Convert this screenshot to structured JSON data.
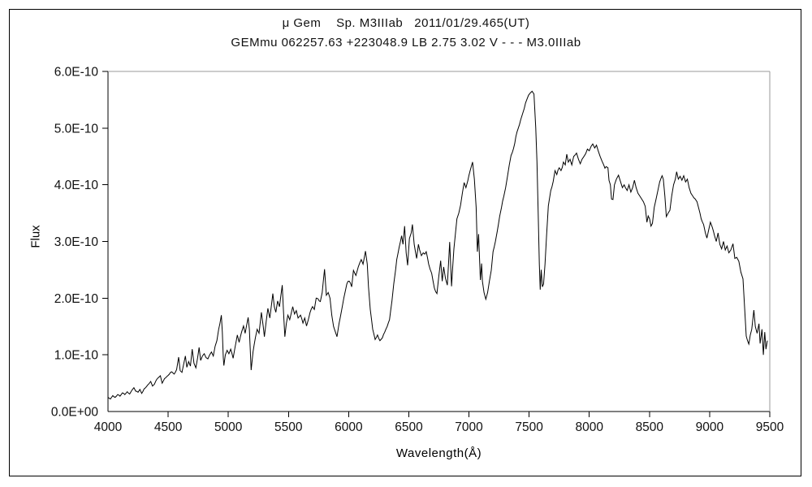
{
  "header": {
    "title_line1": "μ Gem    Sp. M3IIIab   2011/01/29.465(UT)",
    "title_line2": "GEMmu 062257.63 +223048.9 LB 2.75 3.02 V - - - M3.0IIIab"
  },
  "chart_data": {
    "type": "line",
    "title": "μ Gem    Sp. M3IIIab   2011/01/29.465(UT)",
    "subtitle": "GEMmu 062257.63 +223048.9 LB 2.75 3.02 V - - - M3.0IIIab",
    "xlabel": "Wavelength(Å)",
    "ylabel": "Flux",
    "xlim": [
      4000,
      9500
    ],
    "ylim_e10": [
      0,
      6
    ],
    "x_ticks": [
      4000,
      4500,
      5000,
      5500,
      6000,
      6500,
      7000,
      7500,
      8000,
      8500,
      9000,
      9500
    ],
    "y_ticks_e10": [
      0,
      1,
      2,
      3,
      4,
      5,
      6
    ],
    "y_tick_labels": [
      "0.0E+00",
      "1.0E-10",
      "2.0E-10",
      "3.0E-10",
      "4.0E-10",
      "5.0E-10",
      "6.0E-10"
    ],
    "grid": false,
    "legend_position": "none",
    "line_color": "#000000",
    "flux_unit_note": "flux values below are in units of 1E-10 as labeled on the y-axis",
    "points": [
      [
        4000,
        0.25
      ],
      [
        4020,
        0.22
      ],
      [
        4040,
        0.28
      ],
      [
        4060,
        0.25
      ],
      [
        4080,
        0.3
      ],
      [
        4100,
        0.27
      ],
      [
        4120,
        0.33
      ],
      [
        4140,
        0.3
      ],
      [
        4160,
        0.35
      ],
      [
        4180,
        0.31
      ],
      [
        4200,
        0.38
      ],
      [
        4215,
        0.42
      ],
      [
        4230,
        0.36
      ],
      [
        4250,
        0.34
      ],
      [
        4265,
        0.39
      ],
      [
        4280,
        0.32
      ],
      [
        4300,
        0.4
      ],
      [
        4320,
        0.44
      ],
      [
        4340,
        0.49
      ],
      [
        4355,
        0.53
      ],
      [
        4370,
        0.45
      ],
      [
        4385,
        0.48
      ],
      [
        4400,
        0.55
      ],
      [
        4420,
        0.6
      ],
      [
        4435,
        0.63
      ],
      [
        4450,
        0.5
      ],
      [
        4470,
        0.58
      ],
      [
        4490,
        0.62
      ],
      [
        4510,
        0.66
      ],
      [
        4530,
        0.7
      ],
      [
        4550,
        0.66
      ],
      [
        4570,
        0.74
      ],
      [
        4587,
        0.96
      ],
      [
        4600,
        0.72
      ],
      [
        4615,
        0.69
      ],
      [
        4630,
        0.85
      ],
      [
        4643,
        0.98
      ],
      [
        4655,
        0.78
      ],
      [
        4670,
        0.88
      ],
      [
        4685,
        0.8
      ],
      [
        4700,
        1.1
      ],
      [
        4715,
        0.85
      ],
      [
        4730,
        0.77
      ],
      [
        4745,
        0.95
      ],
      [
        4757,
        1.13
      ],
      [
        4770,
        0.9
      ],
      [
        4785,
        0.98
      ],
      [
        4800,
        1.02
      ],
      [
        4815,
        0.95
      ],
      [
        4830,
        0.93
      ],
      [
        4845,
        1.0
      ],
      [
        4860,
        1.05
      ],
      [
        4875,
        0.98
      ],
      [
        4890,
        1.15
      ],
      [
        4905,
        1.25
      ],
      [
        4920,
        1.45
      ],
      [
        4930,
        1.55
      ],
      [
        4942,
        1.7
      ],
      [
        4950,
        1.4
      ],
      [
        4958,
        0.95
      ],
      [
        4963,
        0.81
      ],
      [
        4975,
        1.0
      ],
      [
        4990,
        1.08
      ],
      [
        5005,
        1.02
      ],
      [
        5020,
        1.1
      ],
      [
        5040,
        0.94
      ],
      [
        5055,
        1.12
      ],
      [
        5075,
        1.35
      ],
      [
        5090,
        1.22
      ],
      [
        5110,
        1.4
      ],
      [
        5126,
        1.51
      ],
      [
        5140,
        1.38
      ],
      [
        5155,
        1.55
      ],
      [
        5165,
        1.66
      ],
      [
        5175,
        1.45
      ],
      [
        5190,
        0.73
      ],
      [
        5205,
        1.05
      ],
      [
        5225,
        1.3
      ],
      [
        5240,
        1.45
      ],
      [
        5255,
        1.38
      ],
      [
        5275,
        1.75
      ],
      [
        5290,
        1.5
      ],
      [
        5300,
        1.32
      ],
      [
        5315,
        1.6
      ],
      [
        5329,
        1.82
      ],
      [
        5345,
        1.65
      ],
      [
        5360,
        1.9
      ],
      [
        5370,
        2.08
      ],
      [
        5382,
        1.85
      ],
      [
        5395,
        1.75
      ],
      [
        5410,
        1.95
      ],
      [
        5425,
        1.85
      ],
      [
        5448,
        2.23
      ],
      [
        5458,
        1.8
      ],
      [
        5470,
        1.32
      ],
      [
        5482,
        1.55
      ],
      [
        5495,
        1.7
      ],
      [
        5510,
        1.62
      ],
      [
        5535,
        1.85
      ],
      [
        5550,
        1.72
      ],
      [
        5565,
        1.78
      ],
      [
        5580,
        1.65
      ],
      [
        5600,
        1.7
      ],
      [
        5620,
        1.56
      ],
      [
        5635,
        1.65
      ],
      [
        5650,
        1.51
      ],
      [
        5665,
        1.62
      ],
      [
        5680,
        1.75
      ],
      [
        5700,
        1.85
      ],
      [
        5715,
        1.8
      ],
      [
        5730,
        2.0
      ],
      [
        5745,
        1.99
      ],
      [
        5765,
        1.94
      ],
      [
        5780,
        2.1
      ],
      [
        5800,
        2.51
      ],
      [
        5815,
        2.05
      ],
      [
        5830,
        2.1
      ],
      [
        5845,
        2.0
      ],
      [
        5860,
        1.7
      ],
      [
        5875,
        1.5
      ],
      [
        5890,
        1.4
      ],
      [
        5903,
        1.32
      ],
      [
        5920,
        1.55
      ],
      [
        5940,
        1.77
      ],
      [
        5960,
        2.0
      ],
      [
        5985,
        2.25
      ],
      [
        6005,
        2.3
      ],
      [
        6025,
        2.2
      ],
      [
        6040,
        2.49
      ],
      [
        6060,
        2.4
      ],
      [
        6080,
        2.55
      ],
      [
        6105,
        2.68
      ],
      [
        6120,
        2.6
      ],
      [
        6140,
        2.83
      ],
      [
        6155,
        2.6
      ],
      [
        6165,
        2.2
      ],
      [
        6180,
        1.8
      ],
      [
        6200,
        1.45
      ],
      [
        6220,
        1.27
      ],
      [
        6240,
        1.35
      ],
      [
        6260,
        1.25
      ],
      [
        6280,
        1.3
      ],
      [
        6300,
        1.4
      ],
      [
        6320,
        1.5
      ],
      [
        6340,
        1.62
      ],
      [
        6360,
        1.95
      ],
      [
        6375,
        2.25
      ],
      [
        6390,
        2.5
      ],
      [
        6400,
        2.68
      ],
      [
        6420,
        2.9
      ],
      [
        6440,
        3.1
      ],
      [
        6452,
        2.95
      ],
      [
        6465,
        3.27
      ],
      [
        6478,
        2.8
      ],
      [
        6490,
        2.58
      ],
      [
        6505,
        3.05
      ],
      [
        6520,
        3.15
      ],
      [
        6530,
        3.3
      ],
      [
        6545,
        2.95
      ],
      [
        6565,
        2.7
      ],
      [
        6580,
        2.95
      ],
      [
        6590,
        2.85
      ],
      [
        6605,
        2.75
      ],
      [
        6620,
        2.8
      ],
      [
        6645,
        2.82
      ],
      [
        6665,
        2.6
      ],
      [
        6690,
        2.44
      ],
      [
        6712,
        2.18
      ],
      [
        6734,
        2.08
      ],
      [
        6750,
        2.4
      ],
      [
        6765,
        2.66
      ],
      [
        6778,
        2.3
      ],
      [
        6790,
        2.55
      ],
      [
        6805,
        2.35
      ],
      [
        6820,
        2.23
      ],
      [
        6840,
        2.99
      ],
      [
        6855,
        2.21
      ],
      [
        6875,
        2.87
      ],
      [
        6900,
        3.4
      ],
      [
        6915,
        3.5
      ],
      [
        6930,
        3.64
      ],
      [
        6945,
        3.85
      ],
      [
        6960,
        4.04
      ],
      [
        6975,
        3.95
      ],
      [
        6990,
        4.07
      ],
      [
        7010,
        4.25
      ],
      [
        7030,
        4.4
      ],
      [
        7045,
        4.1
      ],
      [
        7060,
        3.6
      ],
      [
        7070,
        2.82
      ],
      [
        7080,
        3.13
      ],
      [
        7095,
        2.32
      ],
      [
        7105,
        2.61
      ],
      [
        7112,
        2.3
      ],
      [
        7125,
        2.1
      ],
      [
        7140,
        1.98
      ],
      [
        7155,
        2.1
      ],
      [
        7170,
        2.3
      ],
      [
        7185,
        2.49
      ],
      [
        7200,
        2.82
      ],
      [
        7220,
        3.0
      ],
      [
        7235,
        3.18
      ],
      [
        7255,
        3.44
      ],
      [
        7270,
        3.6
      ],
      [
        7290,
        3.8
      ],
      [
        7305,
        3.95
      ],
      [
        7320,
        4.15
      ],
      [
        7335,
        4.35
      ],
      [
        7350,
        4.52
      ],
      [
        7370,
        4.64
      ],
      [
        7390,
        4.85
      ],
      [
        7410,
        5.0
      ],
      [
        7430,
        5.15
      ],
      [
        7445,
        5.25
      ],
      [
        7460,
        5.35
      ],
      [
        7480,
        5.5
      ],
      [
        7495,
        5.58
      ],
      [
        7510,
        5.62
      ],
      [
        7525,
        5.65
      ],
      [
        7540,
        5.6
      ],
      [
        7555,
        5.0
      ],
      [
        7565,
        4.4
      ],
      [
        7575,
        3.5
      ],
      [
        7585,
        2.6
      ],
      [
        7592,
        2.15
      ],
      [
        7600,
        2.5
      ],
      [
        7610,
        2.2
      ],
      [
        7620,
        2.25
      ],
      [
        7632,
        2.6
      ],
      [
        7645,
        3.1
      ],
      [
        7660,
        3.63
      ],
      [
        7680,
        3.9
      ],
      [
        7700,
        4.06
      ],
      [
        7715,
        4.25
      ],
      [
        7730,
        4.18
      ],
      [
        7750,
        4.3
      ],
      [
        7765,
        4.25
      ],
      [
        7785,
        4.4
      ],
      [
        7800,
        4.35
      ],
      [
        7813,
        4.54
      ],
      [
        7826,
        4.4
      ],
      [
        7840,
        4.45
      ],
      [
        7855,
        4.35
      ],
      [
        7870,
        4.5
      ],
      [
        7894,
        4.56
      ],
      [
        7910,
        4.45
      ],
      [
        7925,
        4.37
      ],
      [
        7940,
        4.45
      ],
      [
        7955,
        4.5
      ],
      [
        7970,
        4.55
      ],
      [
        7984,
        4.63
      ],
      [
        8000,
        4.6
      ],
      [
        8015,
        4.68
      ],
      [
        8029,
        4.72
      ],
      [
        8045,
        4.65
      ],
      [
        8060,
        4.7
      ],
      [
        8074,
        4.6
      ],
      [
        8090,
        4.5
      ],
      [
        8105,
        4.42
      ],
      [
        8120,
        4.35
      ],
      [
        8140,
        4.32
      ],
      [
        8155,
        4.3
      ],
      [
        8164,
        4.08
      ],
      [
        8175,
        4.0
      ],
      [
        8185,
        3.75
      ],
      [
        8197,
        3.74
      ],
      [
        8209,
        4.0
      ],
      [
        8225,
        4.1
      ],
      [
        8243,
        4.17
      ],
      [
        8260,
        4.05
      ],
      [
        8275,
        3.95
      ],
      [
        8290,
        4.0
      ],
      [
        8300,
        3.95
      ],
      [
        8315,
        3.9
      ],
      [
        8330,
        4.0
      ],
      [
        8345,
        3.87
      ],
      [
        8360,
        3.95
      ],
      [
        8375,
        4.08
      ],
      [
        8389,
        3.95
      ],
      [
        8405,
        3.85
      ],
      [
        8420,
        3.8
      ],
      [
        8435,
        3.75
      ],
      [
        8450,
        3.7
      ],
      [
        8465,
        3.62
      ],
      [
        8479,
        3.34
      ],
      [
        8490,
        3.45
      ],
      [
        8501,
        3.4
      ],
      [
        8513,
        3.27
      ],
      [
        8525,
        3.32
      ],
      [
        8540,
        3.6
      ],
      [
        8555,
        3.75
      ],
      [
        8570,
        3.9
      ],
      [
        8585,
        4.05
      ],
      [
        8605,
        4.16
      ],
      [
        8615,
        4.1
      ],
      [
        8628,
        3.8
      ],
      [
        8640,
        3.44
      ],
      [
        8655,
        3.5
      ],
      [
        8670,
        3.55
      ],
      [
        8685,
        3.8
      ],
      [
        8700,
        4.0
      ],
      [
        8715,
        4.1
      ],
      [
        8726,
        4.23
      ],
      [
        8740,
        4.1
      ],
      [
        8755,
        4.15
      ],
      [
        8770,
        4.08
      ],
      [
        8785,
        4.16
      ],
      [
        8800,
        4.05
      ],
      [
        8815,
        4.1
      ],
      [
        8830,
        3.95
      ],
      [
        8845,
        3.85
      ],
      [
        8860,
        3.8
      ],
      [
        8880,
        3.75
      ],
      [
        8895,
        3.7
      ],
      [
        8910,
        3.58
      ],
      [
        8930,
        3.4
      ],
      [
        8950,
        3.3
      ],
      [
        8965,
        3.15
      ],
      [
        8978,
        3.06
      ],
      [
        8992,
        3.2
      ],
      [
        9007,
        3.34
      ],
      [
        9022,
        3.25
      ],
      [
        9041,
        3.1
      ],
      [
        9055,
        3.0
      ],
      [
        9070,
        3.15
      ],
      [
        9085,
        2.95
      ],
      [
        9100,
        2.87
      ],
      [
        9115,
        3.0
      ],
      [
        9130,
        2.85
      ],
      [
        9145,
        2.92
      ],
      [
        9160,
        2.8
      ],
      [
        9176,
        2.85
      ],
      [
        9194,
        2.96
      ],
      [
        9210,
        2.7
      ],
      [
        9225,
        2.72
      ],
      [
        9243,
        2.65
      ],
      [
        9260,
        2.46
      ],
      [
        9277,
        2.34
      ],
      [
        9290,
        1.86
      ],
      [
        9304,
        1.33
      ],
      [
        9315,
        1.25
      ],
      [
        9326,
        1.19
      ],
      [
        9338,
        1.35
      ],
      [
        9350,
        1.45
      ],
      [
        9368,
        1.79
      ],
      [
        9380,
        1.5
      ],
      [
        9395,
        1.38
      ],
      [
        9410,
        1.55
      ],
      [
        9420,
        1.2
      ],
      [
        9435,
        1.45
      ],
      [
        9447,
        1.0
      ],
      [
        9458,
        1.4
      ],
      [
        9468,
        1.1
      ],
      [
        9480,
        1.25
      ]
    ]
  }
}
